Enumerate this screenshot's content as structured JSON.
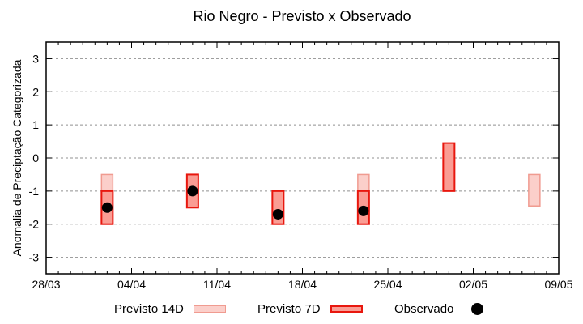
{
  "chart_data": {
    "type": "bar",
    "subtype": "forecast-range-boxes-with-observed-dots",
    "title": "Rio Negro - Previsto x Observado",
    "ylabel": "Anomalia de Preciptação Categorizada",
    "xlabel": "",
    "ylim": [
      -3.5,
      3.5
    ],
    "y_ticks": [
      3,
      2,
      1,
      0,
      -1,
      -2,
      -3
    ],
    "x_axis_days_total": 42,
    "x_ticks": [
      {
        "label": "28/03",
        "day": 0
      },
      {
        "label": "04/04",
        "day": 7
      },
      {
        "label": "11/04",
        "day": 14
      },
      {
        "label": "18/04",
        "day": 21
      },
      {
        "label": "25/04",
        "day": 28
      },
      {
        "label": "02/05",
        "day": 35
      },
      {
        "label": "09/05",
        "day": 42
      }
    ],
    "grid": {
      "horizontal_dashed": true,
      "vertical": false,
      "color": "#909090"
    },
    "colors": {
      "previsto_14d_fill": "#fbcfca",
      "previsto_14d_stroke": "#f09b90",
      "previsto_7d_fill": "#fa9d94",
      "previsto_7d_stroke": "#e8170e",
      "observado": "#000000",
      "axis": "#000000"
    },
    "series": [
      {
        "name": "Previsto 14D",
        "style": "box",
        "key": "14d",
        "points": [
          {
            "date": "02/04",
            "day": 5,
            "top": -0.5,
            "bottom": -2.0
          },
          {
            "date": "23/04",
            "day": 26,
            "top": -0.5,
            "bottom": -2.0
          },
          {
            "date": "07/05",
            "day": 40,
            "top": -0.5,
            "bottom": -1.45
          }
        ]
      },
      {
        "name": "Previsto 7D",
        "style": "box",
        "key": "7d",
        "points": [
          {
            "date": "02/04",
            "day": 5,
            "top": -1.0,
            "bottom": -2.0
          },
          {
            "date": "09/04",
            "day": 12,
            "top": -0.5,
            "bottom": -1.5
          },
          {
            "date": "16/04",
            "day": 19,
            "top": -1.0,
            "bottom": -2.0
          },
          {
            "date": "23/04",
            "day": 26,
            "top": -1.0,
            "bottom": -2.0
          },
          {
            "date": "30/04",
            "day": 33,
            "top": 0.45,
            "bottom": -1.0
          }
        ]
      },
      {
        "name": "Observado",
        "style": "dot",
        "key": "obs",
        "points": [
          {
            "date": "02/04",
            "day": 5,
            "value": -1.5
          },
          {
            "date": "09/04",
            "day": 12,
            "value": -1.0
          },
          {
            "date": "16/04",
            "day": 19,
            "value": -1.7
          },
          {
            "date": "23/04",
            "day": 26,
            "value": -1.6
          }
        ]
      }
    ],
    "legend": {
      "position": "below",
      "entries": [
        "Previsto 14D",
        "Previsto 7D",
        "Observado"
      ]
    }
  }
}
